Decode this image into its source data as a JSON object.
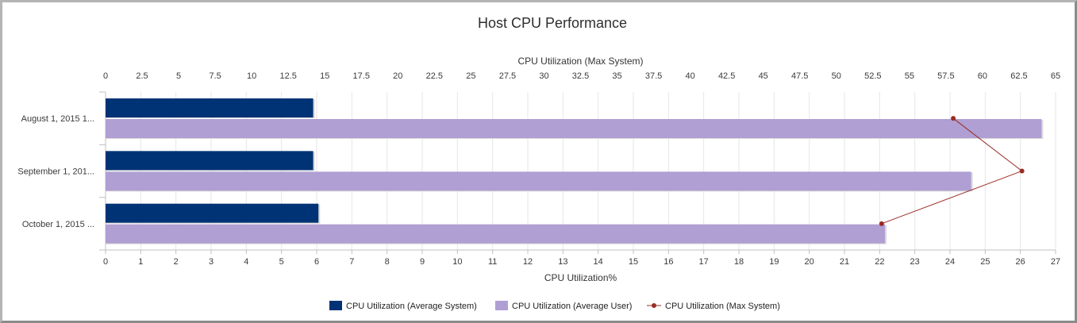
{
  "chart_data": {
    "type": "bar",
    "orientation": "horizontal",
    "title": "Host CPU Performance",
    "categories": [
      "August 1, 2015 1...",
      "September 1, 201...",
      "October 1, 2015 ..."
    ],
    "series": [
      {
        "name": "CPU Utilization (Average System)",
        "axis": "bottom",
        "color": "#003375",
        "values": [
          5.9,
          5.9,
          6.05
        ]
      },
      {
        "name": "CPU Utilization (Average User)",
        "axis": "bottom",
        "color": "#af9fd3",
        "values": [
          26.6,
          24.6,
          22.15
        ]
      },
      {
        "name": "CPU Utilization (Max System)",
        "axis": "top",
        "type": "line",
        "color": "#9b2c22",
        "values": [
          58.0,
          62.7,
          53.1
        ]
      }
    ],
    "xaxis_bottom": {
      "label": "CPU Utilization%",
      "range": [
        0,
        27
      ],
      "ticks": [
        "0",
        "1",
        "2",
        "3",
        "4",
        "5",
        "6",
        "7",
        "8",
        "9",
        "10",
        "11",
        "12",
        "13",
        "14",
        "15",
        "16",
        "17",
        "18",
        "19",
        "20",
        "21",
        "22",
        "23",
        "24",
        "25",
        "26",
        "27"
      ]
    },
    "xaxis_top": {
      "label": "CPU Utilization (Max System)",
      "range": [
        0,
        65
      ],
      "ticks": [
        "0",
        "2.5",
        "5",
        "7.5",
        "10",
        "12.5",
        "15",
        "17.5",
        "20",
        "22.5",
        "25",
        "27.5",
        "30",
        "32.5",
        "35",
        "37.5",
        "40",
        "42.5",
        "45",
        "47.5",
        "50",
        "52.5",
        "55",
        "57.5",
        "60",
        "62.5",
        "65"
      ]
    },
    "grid": true,
    "legend_position": "bottom"
  }
}
